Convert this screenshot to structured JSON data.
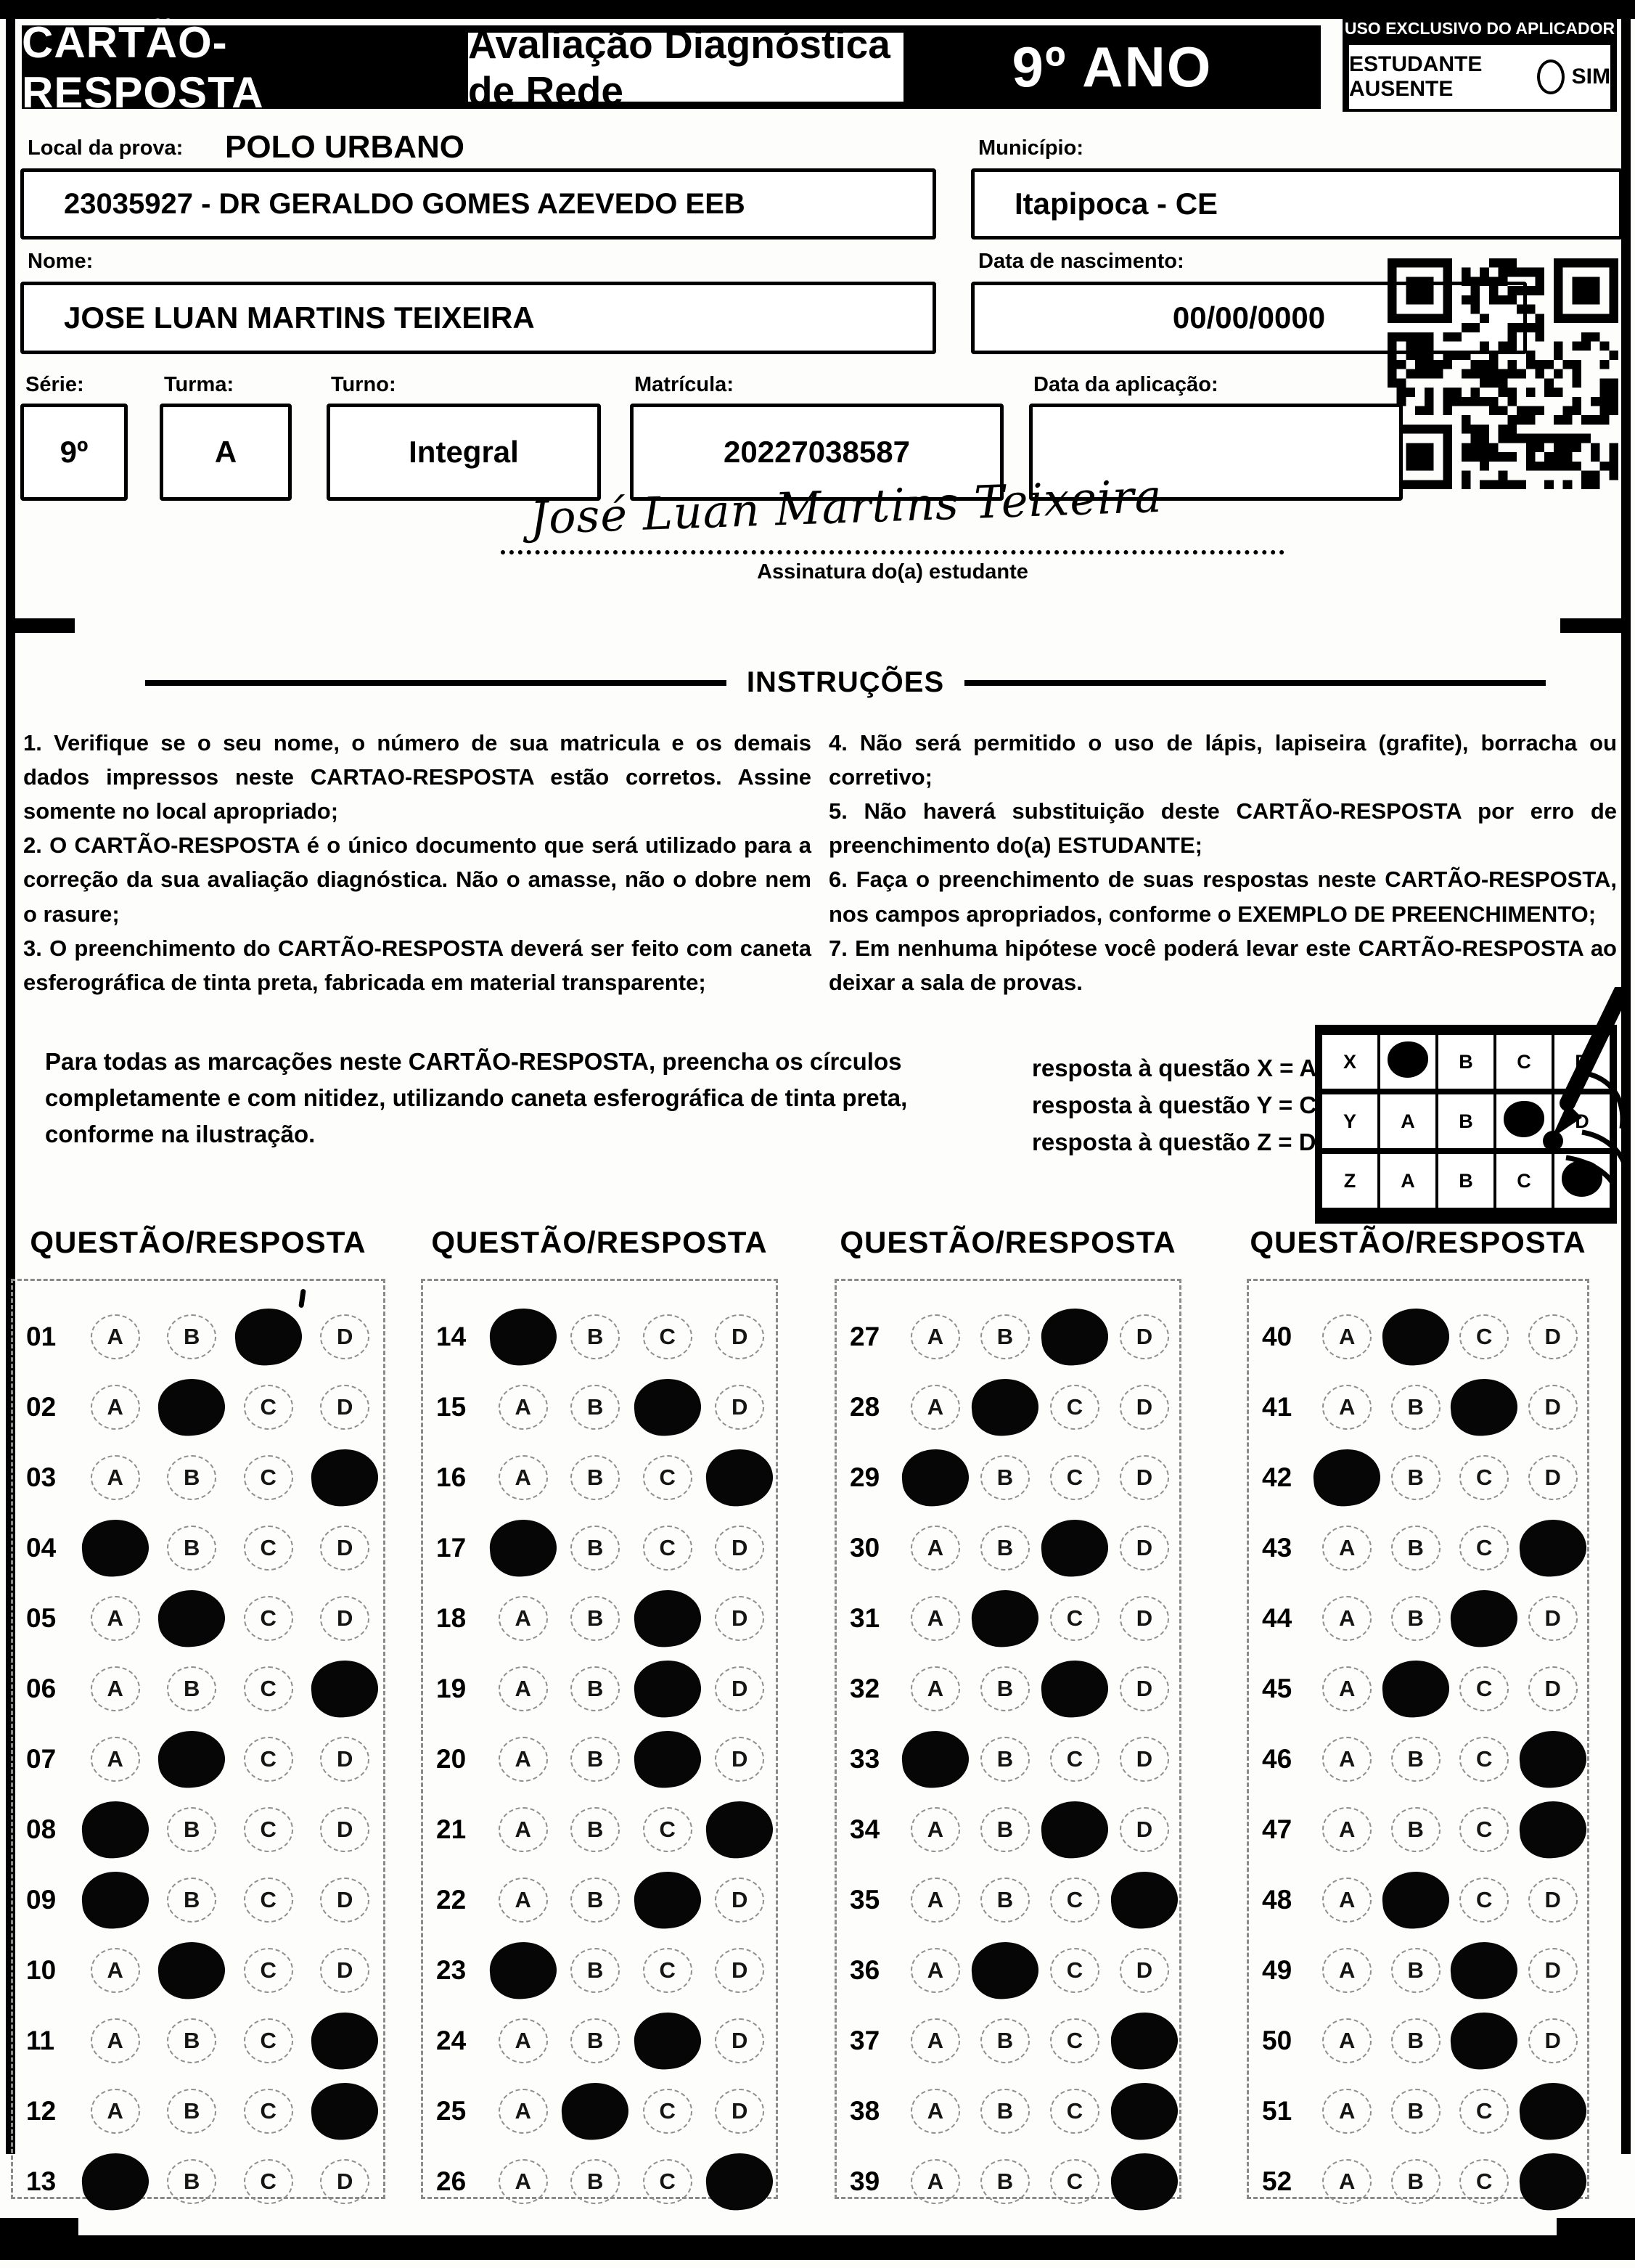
{
  "header": {
    "title": "CARTÃO-RESPOSTA",
    "subtitle": "Avaliação Diagnóstica de Rede",
    "grade": "9º ANO",
    "applicator_box_title": "USO EXCLUSIVO DO APLICADOR",
    "absent_label": "ESTUDANTE AUSENTE",
    "absent_option": "SIM"
  },
  "form": {
    "local_label": "Local da prova:",
    "local_value": "POLO URBANO",
    "school_value": "23035927 - DR GERALDO GOMES AZEVEDO EEB",
    "municipio_label": "Município:",
    "municipio_value": "Itapipoca - CE",
    "nome_label": "Nome:",
    "nome_value": "JOSE LUAN MARTINS TEIXEIRA",
    "nascimento_label": "Data de nascimento:",
    "nascimento_value": "00/00/0000",
    "serie_label": "Série:",
    "serie_value": "9º",
    "turma_label": "Turma:",
    "turma_value": "A",
    "turno_label": "Turno:",
    "turno_value": "Integral",
    "matricula_label": "Matrícula:",
    "matricula_value": "20227038587",
    "aplicacao_label": "Data da aplicação:",
    "aplicacao_value": "",
    "signature_text": "José  Luan  Martins  Teixeira",
    "signature_label": "Assinatura do(a) estudante"
  },
  "instructions": {
    "title": "INSTRUÇÕES",
    "left": [
      "1. Verifique se o seu nome, o número de sua matricula e os demais dados impressos neste CARTAO-RESPOSTA estão corretos. Assine somente no local apropriado;",
      "2. O CARTÃO-RESPOSTA é o único documento que será utilizado para a correção da sua avaliação diagnóstica. Não o amasse, não o dobre nem o rasure;",
      "3. O preenchimento do CARTÃO-RESPOSTA deverá ser feito com caneta esferográfica de tinta preta, fabricada em material transparente;"
    ],
    "right": [
      "4. Não será permitido o uso de lápis, lapiseira (grafite), borracha ou corretivo;",
      "5. Não haverá substituição deste CARTÃO-RESPOSTA por erro de preenchimento do(a) ESTUDANTE;",
      "6. Faça o preenchimento de suas respostas neste CARTÃO-RESPOSTA, nos campos apropriados, conforme o EXEMPLO DE PREENCHIMENTO;",
      "7. Em nenhuma hipótese você poderá levar este CARTÃO-RESPOSTA ao deixar a sala de provas."
    ]
  },
  "marking": {
    "paragraph": "Para todas as marcações neste CARTÃO-RESPOSTA, preencha os círculos completamente e com nitidez, utilizando caneta esferográfica de tinta preta, conforme na ilustração.",
    "examples": [
      "resposta à questão X = A",
      "resposta à questão Y = C",
      "resposta à questão Z = D"
    ],
    "example_grid": {
      "options": [
        "A",
        "B",
        "C",
        "D"
      ],
      "rows": [
        {
          "label": "X",
          "filled": "A"
        },
        {
          "label": "Y",
          "filled": "C"
        },
        {
          "label": "Z",
          "filled": "D"
        }
      ]
    }
  },
  "answer_section": {
    "column_header": "QUESTÃO/RESPOSTA",
    "options": [
      "A",
      "B",
      "C",
      "D"
    ],
    "columns": [
      {
        "questions": [
          {
            "n": "01",
            "answer": "C"
          },
          {
            "n": "02",
            "answer": "B"
          },
          {
            "n": "03",
            "answer": "D"
          },
          {
            "n": "04",
            "answer": "A"
          },
          {
            "n": "05",
            "answer": "B"
          },
          {
            "n": "06",
            "answer": "D"
          },
          {
            "n": "07",
            "answer": "B"
          },
          {
            "n": "08",
            "answer": "A"
          },
          {
            "n": "09",
            "answer": "A"
          },
          {
            "n": "10",
            "answer": "B"
          },
          {
            "n": "11",
            "answer": "D"
          },
          {
            "n": "12",
            "answer": "D"
          },
          {
            "n": "13",
            "answer": "A"
          }
        ]
      },
      {
        "questions": [
          {
            "n": "14",
            "answer": "A"
          },
          {
            "n": "15",
            "answer": "C"
          },
          {
            "n": "16",
            "answer": "D"
          },
          {
            "n": "17",
            "answer": "A"
          },
          {
            "n": "18",
            "answer": "C"
          },
          {
            "n": "19",
            "answer": "C"
          },
          {
            "n": "20",
            "answer": "C"
          },
          {
            "n": "21",
            "answer": "D"
          },
          {
            "n": "22",
            "answer": "C"
          },
          {
            "n": "23",
            "answer": "A"
          },
          {
            "n": "24",
            "answer": "C"
          },
          {
            "n": "25",
            "answer": "B"
          },
          {
            "n": "26",
            "answer": "D"
          }
        ]
      },
      {
        "questions": [
          {
            "n": "27",
            "answer": "C"
          },
          {
            "n": "28",
            "answer": "B"
          },
          {
            "n": "29",
            "answer": "A"
          },
          {
            "n": "30",
            "answer": "C"
          },
          {
            "n": "31",
            "answer": "B"
          },
          {
            "n": "32",
            "answer": "C"
          },
          {
            "n": "33",
            "answer": "A"
          },
          {
            "n": "34",
            "answer": "C"
          },
          {
            "n": "35",
            "answer": "D"
          },
          {
            "n": "36",
            "answer": "B"
          },
          {
            "n": "37",
            "answer": "D"
          },
          {
            "n": "38",
            "answer": "D"
          },
          {
            "n": "39",
            "answer": "D"
          }
        ]
      },
      {
        "questions": [
          {
            "n": "40",
            "answer": "B"
          },
          {
            "n": "41",
            "answer": "C"
          },
          {
            "n": "42",
            "answer": "A"
          },
          {
            "n": "43",
            "answer": "D"
          },
          {
            "n": "44",
            "answer": "C"
          },
          {
            "n": "45",
            "answer": "B"
          },
          {
            "n": "46",
            "answer": "D"
          },
          {
            "n": "47",
            "answer": "D"
          },
          {
            "n": "48",
            "answer": "B"
          },
          {
            "n": "49",
            "answer": "C"
          },
          {
            "n": "50",
            "answer": "C"
          },
          {
            "n": "51",
            "answer": "D"
          },
          {
            "n": "52",
            "answer": "D"
          }
        ]
      }
    ]
  },
  "colors": {
    "ink": "#000000",
    "paper": "#fdfdfc"
  }
}
